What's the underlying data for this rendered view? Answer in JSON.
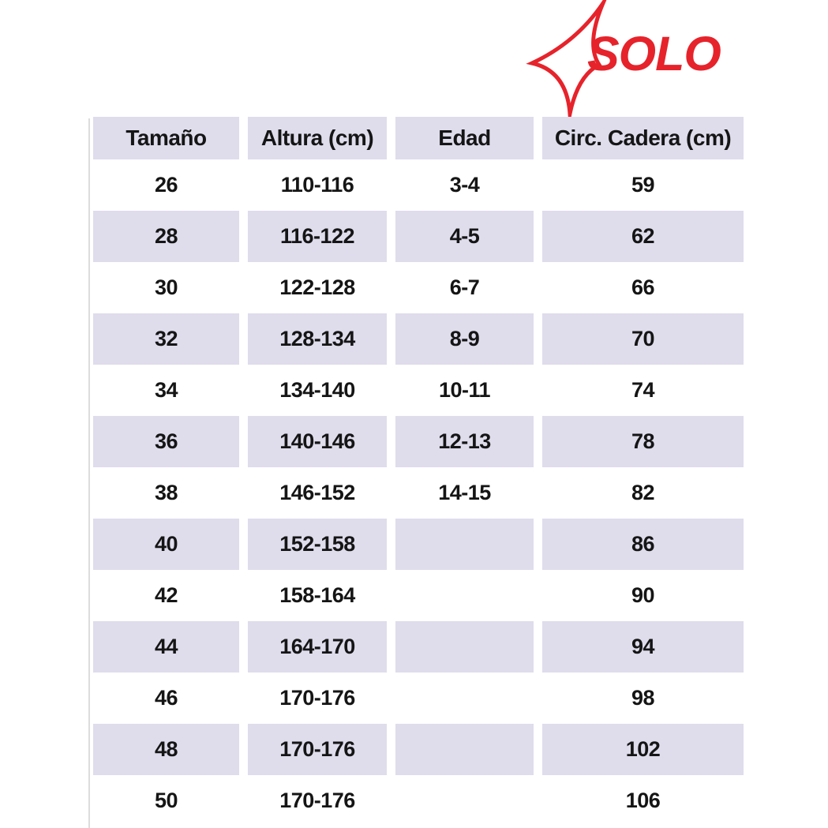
{
  "logo": {
    "text": "SOLO",
    "color": "#e6232b",
    "star_icon": "four-point-star-icon"
  },
  "table": {
    "columns": [
      "Tamaño",
      "Altura (cm)",
      "Edad",
      "Circ. Cadera (cm)"
    ],
    "rows": [
      [
        "26",
        "110-116",
        "3-4",
        "59"
      ],
      [
        "28",
        "116-122",
        "4-5",
        "62"
      ],
      [
        "30",
        "122-128",
        "6-7",
        "66"
      ],
      [
        "32",
        "128-134",
        "8-9",
        "70"
      ],
      [
        "34",
        "134-140",
        "10-11",
        "74"
      ],
      [
        "36",
        "140-146",
        "12-13",
        "78"
      ],
      [
        "38",
        "146-152",
        "14-15",
        "82"
      ],
      [
        "40",
        "152-158",
        "",
        "86"
      ],
      [
        "42",
        "158-164",
        "",
        "90"
      ],
      [
        "44",
        "164-170",
        "",
        "94"
      ],
      [
        "46",
        "170-176",
        "",
        "98"
      ],
      [
        "48",
        "170-176",
        "",
        "102"
      ],
      [
        "50",
        "170-176",
        "",
        "106"
      ]
    ],
    "header_bg": "#dfdcec",
    "stripe_color": "#dfdcec",
    "text_color": "#151515"
  },
  "chart_data": {
    "type": "table",
    "title": "SOLO size guide",
    "columns": [
      "Tamaño",
      "Altura (cm)",
      "Edad",
      "Circ. Cadera (cm)"
    ],
    "rows": [
      [
        "26",
        "110-116",
        "3-4",
        "59"
      ],
      [
        "28",
        "116-122",
        "4-5",
        "62"
      ],
      [
        "30",
        "122-128",
        "6-7",
        "66"
      ],
      [
        "32",
        "128-134",
        "8-9",
        "70"
      ],
      [
        "34",
        "134-140",
        "10-11",
        "74"
      ],
      [
        "36",
        "140-146",
        "12-13",
        "78"
      ],
      [
        "38",
        "146-152",
        "14-15",
        "82"
      ],
      [
        "40",
        "152-158",
        "",
        "86"
      ],
      [
        "42",
        "158-164",
        "",
        "90"
      ],
      [
        "44",
        "164-170",
        "",
        "94"
      ],
      [
        "46",
        "170-176",
        "",
        "98"
      ],
      [
        "48",
        "170-176",
        "",
        "102"
      ],
      [
        "50",
        "170-176",
        "",
        "106"
      ]
    ],
    "layout": {
      "row_striping": true,
      "stripe_color": "#dfdcec",
      "header_bg": "#dfdcec"
    }
  }
}
